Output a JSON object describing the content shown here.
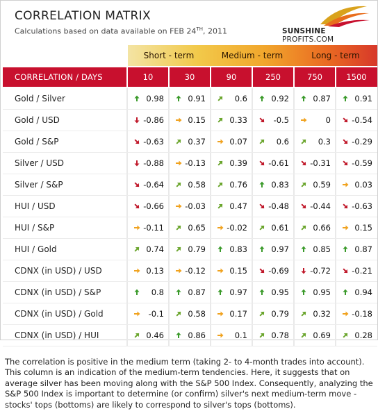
{
  "header": {
    "title": "CORRELATION MATRIX",
    "subtitle_prefix": "Calculations based on data available on  FEB 24",
    "subtitle_sup": "TH",
    "subtitle_suffix": ", 2011",
    "logo_bold": "SUNSHINE",
    "logo_thin": " PROFITS.COM"
  },
  "bands": {
    "short": "Short - term",
    "medium": "Medium - term",
    "long": "Long - term"
  },
  "columns_label": "CORRELATION / DAYS",
  "columns": [
    "10",
    "30",
    "90",
    "250",
    "750",
    "1500"
  ],
  "colors": {
    "header_red": "#c8102e",
    "up": "#3a9a2a",
    "down": "#c0182a",
    "flat": "#f0a21e",
    "up_diag": "#6aa52c",
    "down_diag": "#c0182a"
  },
  "rows": [
    {
      "label": "Gold / Silver",
      "cells": [
        [
          "up",
          "0.98"
        ],
        [
          "up",
          "0.91"
        ],
        [
          "up-diag",
          "0.6"
        ],
        [
          "up",
          "0.92"
        ],
        [
          "up",
          "0.87"
        ],
        [
          "up",
          "0.91"
        ]
      ]
    },
    {
      "label": "Gold / USD",
      "cells": [
        [
          "down",
          "-0.86"
        ],
        [
          "flat",
          "0.15"
        ],
        [
          "up-diag",
          "0.33"
        ],
        [
          "down-diag",
          "-0.5"
        ],
        [
          "flat",
          "0"
        ],
        [
          "down-diag",
          "-0.54"
        ]
      ]
    },
    {
      "label": "Gold / S&P",
      "cells": [
        [
          "down-diag",
          "-0.63"
        ],
        [
          "up-diag",
          "0.37"
        ],
        [
          "flat",
          "0.07"
        ],
        [
          "up-diag",
          "0.6"
        ],
        [
          "up-diag",
          "0.3"
        ],
        [
          "down-diag",
          "-0.29"
        ]
      ]
    },
    {
      "label": "Silver / USD",
      "cells": [
        [
          "down",
          "-0.88"
        ],
        [
          "flat",
          "-0.13"
        ],
        [
          "up-diag",
          "0.39"
        ],
        [
          "down-diag",
          "-0.61"
        ],
        [
          "down-diag",
          "-0.31"
        ],
        [
          "down-diag",
          "-0.59"
        ]
      ]
    },
    {
      "label": "Silver / S&P",
      "cells": [
        [
          "down-diag",
          "-0.64"
        ],
        [
          "up-diag",
          "0.58"
        ],
        [
          "up-diag",
          "0.76"
        ],
        [
          "up",
          "0.83"
        ],
        [
          "up-diag",
          "0.59"
        ],
        [
          "flat",
          "0.03"
        ]
      ]
    },
    {
      "label": "HUI / USD",
      "cells": [
        [
          "down-diag",
          "-0.66"
        ],
        [
          "flat",
          "-0.03"
        ],
        [
          "up-diag",
          "0.47"
        ],
        [
          "down-diag",
          "-0.48"
        ],
        [
          "down-diag",
          "-0.44"
        ],
        [
          "down-diag",
          "-0.63"
        ]
      ]
    },
    {
      "label": "HUI / S&P",
      "cells": [
        [
          "flat",
          "-0.11"
        ],
        [
          "up-diag",
          "0.65"
        ],
        [
          "flat",
          "-0.02"
        ],
        [
          "up-diag",
          "0.61"
        ],
        [
          "up-diag",
          "0.66"
        ],
        [
          "flat",
          "0.15"
        ]
      ]
    },
    {
      "label": "HUI / Gold",
      "cells": [
        [
          "up-diag",
          "0.74"
        ],
        [
          "up-diag",
          "0.79"
        ],
        [
          "up",
          "0.83"
        ],
        [
          "up",
          "0.97"
        ],
        [
          "up",
          "0.85"
        ],
        [
          "up",
          "0.87"
        ]
      ]
    },
    {
      "label": "CDNX (in USD) / USD",
      "cells": [
        [
          "flat",
          "0.13"
        ],
        [
          "flat",
          "-0.12"
        ],
        [
          "flat",
          "0.15"
        ],
        [
          "down-diag",
          "-0.69"
        ],
        [
          "down",
          "-0.72"
        ],
        [
          "down-diag",
          "-0.21"
        ]
      ]
    },
    {
      "label": "CDNX (in USD) / S&P",
      "cells": [
        [
          "up",
          "0.8"
        ],
        [
          "up",
          "0.87"
        ],
        [
          "up",
          "0.97"
        ],
        [
          "up",
          "0.95"
        ],
        [
          "up",
          "0.95"
        ],
        [
          "up",
          "0.94"
        ]
      ]
    },
    {
      "label": "CDNX (in USD) / Gold",
      "cells": [
        [
          "flat",
          "-0.1"
        ],
        [
          "up-diag",
          "0.58"
        ],
        [
          "flat",
          "0.17"
        ],
        [
          "up-diag",
          "0.79"
        ],
        [
          "up-diag",
          "0.32"
        ],
        [
          "flat",
          "-0.18"
        ]
      ]
    },
    {
      "label": "CDNX (in USD) / HUI",
      "cells": [
        [
          "up-diag",
          "0.46"
        ],
        [
          "up",
          "0.86"
        ],
        [
          "flat",
          "0.1"
        ],
        [
          "up-diag",
          "0.78"
        ],
        [
          "up-diag",
          "0.69"
        ],
        [
          "up-diag",
          "0.28"
        ]
      ]
    }
  ],
  "note": "The correlation is positive in the medium term (taking 2- to 4-month trades into account). This column is an indication of the medium-term tendencies. Here, it suggests that on average silver has been moving along with the S&P 500 Index. Consequently, analyzing the S&P 500 Index is important to determine (or confirm) silver's next medium-term move - stocks' tops (bottoms) are likely to correspond to silver's tops (bottoms)."
}
